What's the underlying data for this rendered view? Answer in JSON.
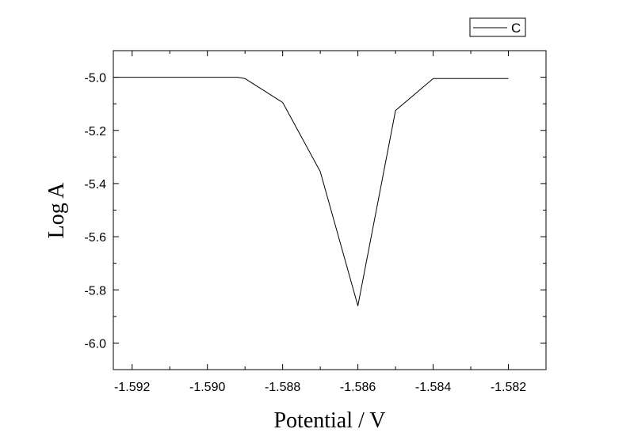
{
  "chart_data": {
    "type": "line",
    "title": "",
    "xlabel": "Potential / V",
    "ylabel": "Log A",
    "xlim": [
      -1.5925,
      -1.581
    ],
    "ylim": [
      -6.1,
      -4.9
    ],
    "xticks": [
      -1.592,
      -1.59,
      -1.588,
      -1.586,
      -1.584,
      -1.582
    ],
    "xtick_labels": [
      "-1.592",
      "-1.590",
      "-1.588",
      "-1.586",
      "-1.584",
      "-1.582"
    ],
    "yticks": [
      -5.0,
      -5.2,
      -5.4,
      -5.6,
      -5.8,
      -6.0
    ],
    "ytick_labels": [
      "-5.0",
      "-5.2",
      "-5.4",
      "-5.6",
      "-5.8",
      "-6.0"
    ],
    "grid": false,
    "legend_position": "top-right",
    "series": [
      {
        "name": "C",
        "color": "#000000",
        "x": [
          -1.5925,
          -1.5892,
          -1.589,
          -1.588,
          -1.587,
          -1.586,
          -1.585,
          -1.584,
          -1.582
        ],
        "y": [
          -5.0,
          -5.0,
          -5.005,
          -5.095,
          -5.355,
          -5.86,
          -5.125,
          -5.005,
          -5.005
        ]
      }
    ]
  }
}
